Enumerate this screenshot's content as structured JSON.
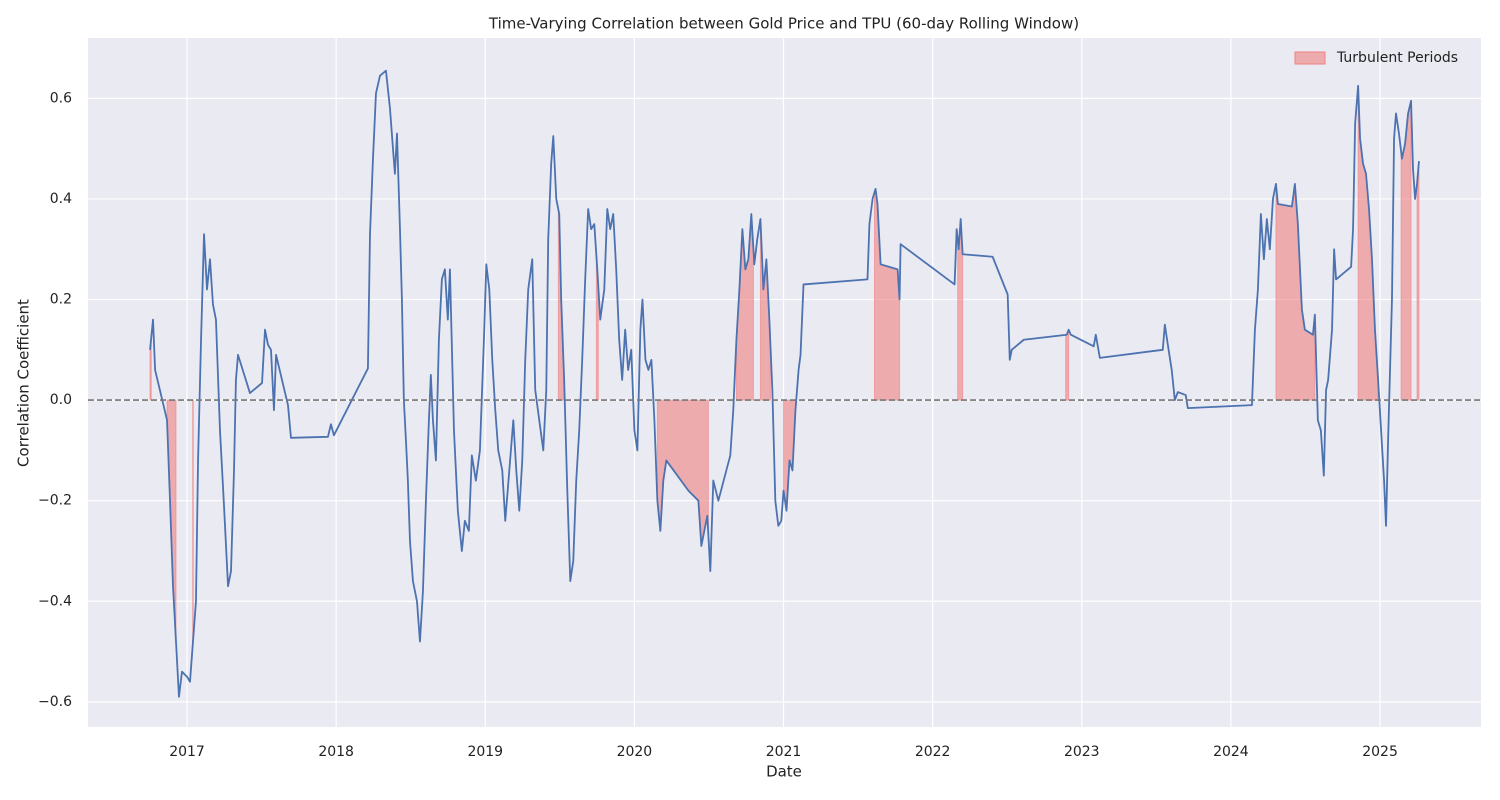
{
  "chart_data": {
    "type": "line",
    "title": "Time-Varying Correlation between Gold Price and TPU (60-day Rolling Window)",
    "x_label": "Date",
    "y_label": "Correlation Coefficient",
    "color": "#4c72b0",
    "x": [
      2016.752,
      2016.772,
      2016.786,
      2016.866,
      2016.886,
      2016.906,
      2016.926,
      2016.946,
      2016.966,
      2017.0,
      2017.02,
      2017.04,
      2017.06,
      2017.074,
      2017.094,
      2017.114,
      2017.134,
      2017.154,
      2017.174,
      2017.194,
      2017.221,
      2017.248,
      2017.275,
      2017.295,
      2017.315,
      2017.328,
      2017.342,
      2017.422,
      2017.503,
      2017.523,
      2017.543,
      2017.563,
      2017.583,
      2017.597,
      2017.677,
      2017.697,
      2017.945,
      2017.965,
      2017.985,
      2018.213,
      2018.227,
      2018.247,
      2018.267,
      2018.294,
      2018.334,
      2018.361,
      2018.381,
      2018.394,
      2018.408,
      2018.428,
      2018.441,
      2018.454,
      2018.468,
      2018.481,
      2018.495,
      2018.515,
      2018.542,
      2018.562,
      2018.582,
      2018.602,
      2018.622,
      2018.635,
      2018.649,
      2018.669,
      2018.689,
      2018.709,
      2018.729,
      2018.749,
      2018.763,
      2018.79,
      2018.816,
      2018.843,
      2018.863,
      2018.89,
      2018.91,
      2018.937,
      2018.964,
      2018.991,
      2019.007,
      2019.027,
      2019.047,
      2019.067,
      2019.087,
      2019.114,
      2019.134,
      2019.161,
      2019.188,
      2019.208,
      2019.228,
      2019.248,
      2019.268,
      2019.288,
      2019.315,
      2019.335,
      2019.362,
      2019.389,
      2019.409,
      2019.422,
      2019.442,
      2019.456,
      2019.476,
      2019.496,
      2019.509,
      2019.529,
      2019.55,
      2019.57,
      2019.59,
      2019.61,
      2019.63,
      2019.65,
      2019.67,
      2019.69,
      2019.71,
      2019.731,
      2019.751,
      2019.771,
      2019.798,
      2019.818,
      2019.838,
      2019.858,
      2019.878,
      2019.898,
      2019.918,
      2019.938,
      2019.958,
      2019.979,
      2020.0,
      2020.02,
      2020.04,
      2020.054,
      2020.074,
      2020.094,
      2020.114,
      2020.134,
      2020.154,
      2020.174,
      2020.194,
      2020.214,
      2020.362,
      2020.429,
      2020.449,
      2020.469,
      2020.489,
      2020.509,
      2020.529,
      2020.563,
      2020.643,
      2020.663,
      2020.684,
      2020.704,
      2020.724,
      2020.744,
      2020.764,
      2020.784,
      2020.804,
      2020.824,
      2020.845,
      2020.865,
      2020.885,
      2020.905,
      2020.925,
      2020.945,
      2020.965,
      2020.985,
      2021.0,
      2021.02,
      2021.04,
      2021.06,
      2021.08,
      2021.101,
      2021.114,
      2021.134,
      2021.563,
      2021.576,
      2021.597,
      2021.617,
      2021.63,
      2021.651,
      2021.765,
      2021.778,
      2021.785,
      2022.147,
      2022.161,
      2022.174,
      2022.188,
      2022.201,
      2022.402,
      2022.503,
      2022.517,
      2022.53,
      2022.611,
      2022.899,
      2022.912,
      2022.926,
      2023.08,
      2023.094,
      2023.121,
      2023.543,
      2023.557,
      2023.577,
      2023.603,
      2023.624,
      2023.644,
      2023.697,
      2023.711,
      2024.141,
      2024.161,
      2024.181,
      2024.201,
      2024.221,
      2024.241,
      2024.261,
      2024.282,
      2024.302,
      2024.315,
      2024.409,
      2024.429,
      2024.449,
      2024.476,
      2024.496,
      2024.55,
      2024.563,
      2024.583,
      2024.603,
      2024.623,
      2024.638,
      2024.652,
      2024.678,
      2024.692,
      2024.705,
      2024.806,
      2024.819,
      2024.833,
      2024.853,
      2024.866,
      2024.886,
      2024.906,
      2024.926,
      2024.946,
      2024.966,
      2024.987,
      2025.007,
      2025.027,
      2025.04,
      2025.054,
      2025.067,
      2025.08,
      2025.094,
      2025.107,
      2025.127,
      2025.147,
      2025.168,
      2025.188,
      2025.208,
      2025.221,
      2025.235,
      2025.248,
      2025.261
    ],
    "values": [
      0.1,
      0.16,
      0.06,
      -0.04,
      -0.2,
      -0.37,
      -0.48,
      -0.59,
      -0.54,
      -0.55,
      -0.56,
      -0.48,
      -0.4,
      -0.12,
      0.12,
      0.33,
      0.22,
      0.28,
      0.19,
      0.16,
      -0.06,
      -0.21,
      -0.37,
      -0.34,
      -0.14,
      0.04,
      0.09,
      0.014,
      0.034,
      0.14,
      0.11,
      0.1,
      -0.02,
      0.09,
      -0.01,
      -0.075,
      -0.073,
      -0.048,
      -0.07,
      0.063,
      0.33,
      0.48,
      0.61,
      0.645,
      0.655,
      0.58,
      0.5,
      0.45,
      0.53,
      0.34,
      0.2,
      0.0,
      -0.08,
      -0.16,
      -0.28,
      -0.36,
      -0.4,
      -0.48,
      -0.38,
      -0.2,
      -0.04,
      0.05,
      -0.04,
      -0.12,
      0.12,
      0.24,
      0.26,
      0.16,
      0.26,
      -0.06,
      -0.22,
      -0.3,
      -0.24,
      -0.26,
      -0.11,
      -0.16,
      -0.1,
      0.12,
      0.27,
      0.22,
      0.08,
      -0.02,
      -0.1,
      -0.14,
      -0.24,
      -0.14,
      -0.04,
      -0.14,
      -0.22,
      -0.12,
      0.08,
      0.22,
      0.28,
      0.02,
      -0.04,
      -0.1,
      0.02,
      0.32,
      0.47,
      0.525,
      0.4,
      0.37,
      0.2,
      0.04,
      -0.18,
      -0.36,
      -0.32,
      -0.16,
      -0.06,
      0.08,
      0.24,
      0.38,
      0.34,
      0.35,
      0.26,
      0.16,
      0.22,
      0.38,
      0.34,
      0.37,
      0.26,
      0.12,
      0.04,
      0.14,
      0.06,
      0.1,
      -0.06,
      -0.1,
      0.14,
      0.2,
      0.08,
      0.06,
      0.08,
      -0.04,
      -0.2,
      -0.26,
      -0.16,
      -0.12,
      -0.18,
      -0.2,
      -0.29,
      -0.26,
      -0.23,
      -0.34,
      -0.16,
      -0.2,
      -0.11,
      -0.02,
      0.12,
      0.22,
      0.34,
      0.26,
      0.28,
      0.37,
      0.27,
      0.32,
      0.36,
      0.22,
      0.28,
      0.16,
      0.02,
      -0.2,
      -0.25,
      -0.24,
      -0.18,
      -0.22,
      -0.12,
      -0.14,
      -0.02,
      0.06,
      0.09,
      0.23,
      0.24,
      0.35,
      0.4,
      0.42,
      0.39,
      0.27,
      0.26,
      0.2,
      0.31,
      0.23,
      0.34,
      0.3,
      0.36,
      0.29,
      0.285,
      0.21,
      0.08,
      0.1,
      0.12,
      0.13,
      0.14,
      0.13,
      0.107,
      0.13,
      0.084,
      0.1,
      0.15,
      0.11,
      0.06,
      0.0,
      0.016,
      0.01,
      -0.016,
      -0.01,
      0.14,
      0.22,
      0.37,
      0.28,
      0.36,
      0.3,
      0.4,
      0.43,
      0.39,
      0.385,
      0.43,
      0.35,
      0.18,
      0.14,
      0.13,
      0.17,
      -0.04,
      -0.06,
      -0.15,
      0.02,
      0.04,
      0.14,
      0.3,
      0.24,
      0.265,
      0.34,
      0.55,
      0.625,
      0.52,
      0.47,
      0.45,
      0.38,
      0.28,
      0.14,
      0.04,
      -0.06,
      -0.16,
      -0.25,
      -0.08,
      0.06,
      0.2,
      0.52,
      0.57,
      0.53,
      0.48,
      0.51,
      0.57,
      0.595,
      0.46,
      0.4,
      0.43,
      0.475
    ],
    "legend_label": "Turbulent Periods",
    "shade_color": "#f08080",
    "turbulent_periods": [
      [
        2016.752,
        2016.76
      ],
      [
        2016.866,
        2016.926
      ],
      [
        2017.038,
        2017.042
      ],
      [
        2019.49,
        2019.529
      ],
      [
        2019.745,
        2019.758
      ],
      [
        2020.154,
        2020.496
      ],
      [
        2020.684,
        2020.798
      ],
      [
        2020.845,
        2020.912
      ],
      [
        2021.0,
        2021.087
      ],
      [
        2021.61,
        2021.778
      ],
      [
        2022.168,
        2022.201
      ],
      [
        2022.892,
        2022.912
      ],
      [
        2024.302,
        2024.563
      ],
      [
        2024.853,
        2024.987
      ],
      [
        2025.141,
        2025.208
      ],
      [
        2025.248,
        2025.261
      ]
    ],
    "hline": 0,
    "xlim": [
      2016.336,
      2025.677
    ],
    "ylim": [
      -0.65,
      0.72
    ],
    "xticks": [
      2017,
      2018,
      2019,
      2020,
      2021,
      2022,
      2023,
      2024,
      2025
    ],
    "yticks": [
      {
        "value": -0.6,
        "label": "−0.6"
      },
      {
        "value": -0.4,
        "label": "−0.4"
      },
      {
        "value": -0.2,
        "label": "−0.2"
      },
      {
        "value": 0,
        "label": "0.0"
      },
      0.2,
      0.4,
      0.6
    ],
    "grid": true,
    "legend": "upper right"
  }
}
